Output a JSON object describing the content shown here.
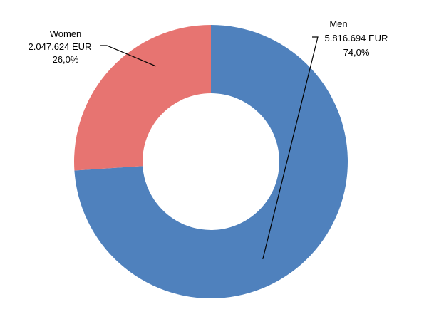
{
  "chart_data": {
    "type": "pie",
    "variant": "donut",
    "start_angle_deg": 0,
    "direction": "clockwise",
    "slices": [
      {
        "name": "Men",
        "value": 5816694,
        "value_label": "5.816.694 EUR",
        "percent": 74.0,
        "percent_label": "74,0%",
        "color": "#4F81BD"
      },
      {
        "name": "Women",
        "value": 2047624,
        "value_label": "2.047.624 EUR",
        "percent": 26.0,
        "percent_label": "26,0%",
        "color": "#E77471"
      }
    ]
  }
}
